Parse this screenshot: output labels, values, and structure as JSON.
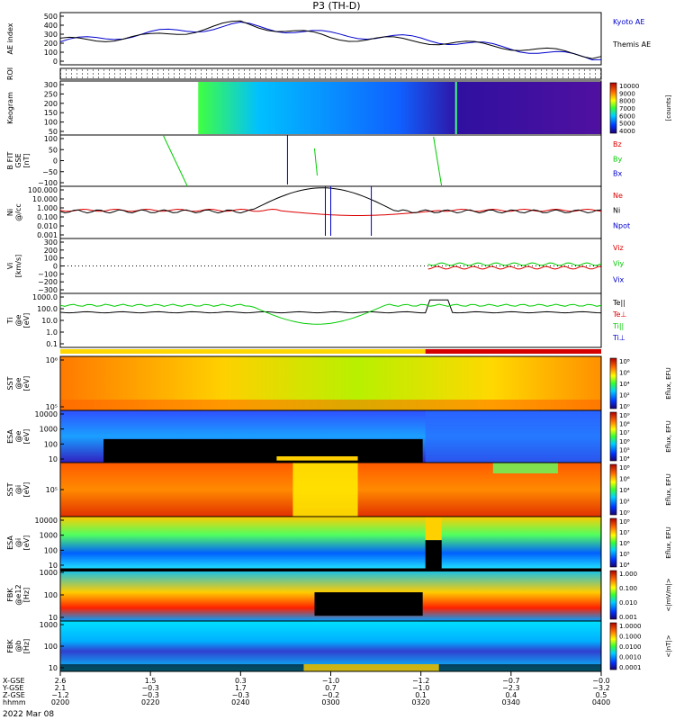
{
  "title": "P3 (TH-D)",
  "date_label": "2022 Mar 08",
  "colors": {
    "kyoto": "#0000cc",
    "themis": "#000000",
    "red": "#dd0000",
    "green": "#00cc00",
    "blue": "#0000cc",
    "black": "#000000",
    "mode_bar_fast": "#ffd700",
    "mode_bar_slow": "#d40000"
  },
  "panels": [
    {
      "id": "ae",
      "ylabel": [
        "AE index"
      ],
      "ticks": [
        "500",
        "400",
        "300",
        "200",
        "100",
        "0"
      ],
      "right_labels": [
        {
          "text": "Kyoto AE",
          "color": "kyoto"
        },
        {
          "text": "Themis AE",
          "color": "themis"
        }
      ]
    },
    {
      "id": "roi",
      "ylabel": [
        "ROI"
      ],
      "ticks": [],
      "right_labels": []
    },
    {
      "id": "keogram",
      "ylabel": [
        "Keogram"
      ],
      "ticks": [
        "300",
        "250",
        "200",
        "150",
        "100",
        "50"
      ],
      "colorbar": {
        "ticks": [
          "10000",
          "9000",
          "8000",
          "7000",
          "6000",
          "5000",
          "4000"
        ],
        "units": "[counts]"
      },
      "right_labels": []
    },
    {
      "id": "bfit",
      "ylabel": [
        "B FIT",
        "GSE",
        "[nT]"
      ],
      "ticks": [
        "100",
        "50",
        "0",
        "−50",
        "−100"
      ],
      "right_labels": [
        {
          "text": "Bz",
          "color": "red"
        },
        {
          "text": "By",
          "color": "green"
        },
        {
          "text": "Bx",
          "color": "blue"
        }
      ]
    },
    {
      "id": "ni",
      "ylabel": [
        "Ni",
        "@/cc"
      ],
      "ticks": [
        "100.000",
        "10.000",
        "1.000",
        "0.100",
        "0.010",
        "0.001"
      ],
      "right_labels": [
        {
          "text": "Ne",
          "color": "red"
        },
        {
          "text": "Ni",
          "color": "black"
        },
        {
          "text": "Npot",
          "color": "blue"
        }
      ]
    },
    {
      "id": "vi",
      "ylabel": [
        "Vi",
        "[km/s]"
      ],
      "ticks": [
        "300",
        "200",
        "100",
        "0",
        "−100",
        "−200",
        "−300"
      ],
      "right_labels": [
        {
          "text": "Viz",
          "color": "red"
        },
        {
          "text": "Viy",
          "color": "green"
        },
        {
          "text": "Vix",
          "color": "blue"
        }
      ]
    },
    {
      "id": "ti",
      "ylabel": [
        "Ti",
        "@e",
        "[eV]"
      ],
      "ticks": [
        "1000.0",
        "100.0",
        "10.0",
        "1.0",
        "0.1"
      ],
      "right_labels": [
        {
          "text": "Te||",
          "color": "black"
        },
        {
          "text": "Te⊥",
          "color": "red"
        },
        {
          "text": "Ti||",
          "color": "green"
        },
        {
          "text": "Ti⊥",
          "color": "blue"
        }
      ]
    },
    {
      "id": "sst_e",
      "ylabel": [
        "SST",
        "@e",
        "[eV]"
      ],
      "ticks": [
        "10⁶",
        "10⁵"
      ],
      "colorbar": {
        "ticks": [
          "10⁸",
          "10⁶",
          "10⁴",
          "10²",
          "10⁰"
        ],
        "units": "Eflux, EFU"
      },
      "right_labels": []
    },
    {
      "id": "esa_e",
      "ylabel": [
        "ESA",
        "@e",
        "[eV]"
      ],
      "ticks": [
        "10000",
        "1000",
        "100",
        "10"
      ],
      "colorbar": {
        "ticks": [
          "10⁹",
          "10⁸",
          "10⁷",
          "10⁶",
          "10⁵",
          "10⁴"
        ],
        "units": "Eflux, EFU"
      },
      "right_labels": []
    },
    {
      "id": "sst_i",
      "ylabel": [
        "SST",
        "@i",
        "[eV]"
      ],
      "ticks": [
        "10⁵"
      ],
      "colorbar": {
        "ticks": [
          "10⁸",
          "10⁶",
          "10⁴",
          "10²",
          "10⁰"
        ],
        "units": "Eflux, EFU"
      },
      "right_labels": []
    },
    {
      "id": "esa_i",
      "ylabel": [
        "ESA",
        "@i",
        "[eV]"
      ],
      "ticks": [
        "10000",
        "1000",
        "100",
        "10"
      ],
      "colorbar": {
        "ticks": [
          "10⁸",
          "10⁷",
          "10⁶",
          "10⁵",
          "10⁴"
        ],
        "units": "Eflux, EFU"
      },
      "right_labels": []
    },
    {
      "id": "fbk_e",
      "ylabel": [
        "FBK",
        "@e12",
        "[Hz]"
      ],
      "ticks": [
        "1000",
        "100",
        "10"
      ],
      "colorbar": {
        "ticks": [
          "1.000",
          "0.100",
          "0.010",
          "0.001"
        ],
        "units": "<|mV/m|>"
      },
      "right_labels": []
    },
    {
      "id": "fbk_b",
      "ylabel": [
        "FBK",
        "@b",
        "[Hz]"
      ],
      "ticks": [
        "1000",
        "100",
        "10"
      ],
      "colorbar": {
        "ticks": [
          "1.0000",
          "0.1000",
          "0.0100",
          "0.0010",
          "0.0001"
        ],
        "units": "<|nT|>"
      },
      "right_labels": []
    }
  ],
  "xaxis": {
    "row_labels": [
      "X-GSE",
      "Y-GSE",
      "Z-GSE",
      "hhmm"
    ],
    "columns": [
      {
        "x": [
          "2.6",
          "2.1",
          "−1.2",
          "0200"
        ]
      },
      {
        "x": [
          "1.5",
          "−0.3",
          "−0.3",
          "0220"
        ]
      },
      {
        "x": [
          "0.3",
          "1.7",
          "−0.3",
          "0240"
        ]
      },
      {
        "x": [
          "−1.0",
          "0.7",
          "−0.2",
          "0300"
        ]
      },
      {
        "x": [
          "−1.2",
          "−1.0",
          "0.1",
          "0320"
        ]
      },
      {
        "x": [
          "−0.7",
          "−2.3",
          "0.4",
          "0340"
        ]
      },
      {
        "x": [
          "−0.0",
          "−3.2",
          "0.5",
          "0400"
        ]
      }
    ]
  },
  "chart_data": {
    "type": "line",
    "title": "P3 (TH-D)",
    "x_unit": "hhmm",
    "x": [
      "0200",
      "0220",
      "0240",
      "0300",
      "0320",
      "0340",
      "0400"
    ],
    "series": [
      {
        "name": "Kyoto AE",
        "values": [
          220,
          300,
          380,
          290,
          250,
          160,
          50
        ]
      },
      {
        "name": "Themis AE",
        "values": [
          230,
          270,
          400,
          260,
          230,
          170,
          80
        ]
      }
    ],
    "ylim": [
      0,
      500
    ]
  }
}
